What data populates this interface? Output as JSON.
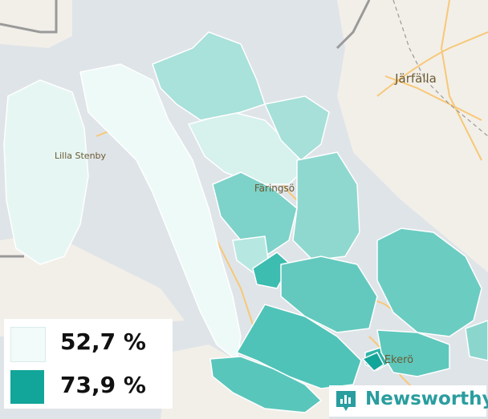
{
  "map": {
    "places": [
      {
        "name": "Järfälla"
      },
      {
        "name": "Lilla Stenby"
      },
      {
        "name": "Färingsö"
      },
      {
        "name": "Ekerö"
      }
    ]
  },
  "legend": {
    "items": [
      {
        "label": "52,7 %",
        "color": "#f2fbfa"
      },
      {
        "label": "73,9 %",
        "color": "#12a59a"
      }
    ]
  },
  "brand": {
    "name": "Newsworthy",
    "color": "#2a9d9f",
    "icon": "bar-chart-badge-icon"
  },
  "colors": {
    "water": "#dfe4e8",
    "land": "#f2efe9",
    "road": "#f7c877",
    "boundary": "#9a9a9a"
  }
}
